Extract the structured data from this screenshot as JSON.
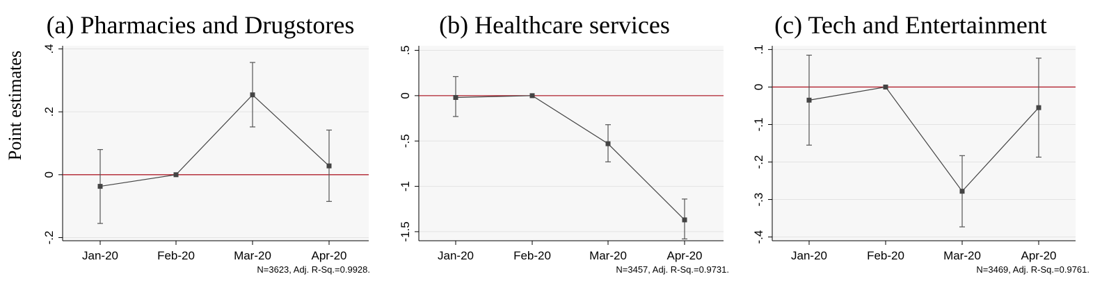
{
  "figure": {
    "ylabel": "Point estimates"
  },
  "chart_data": [
    {
      "type": "line",
      "title": "(a) Pharmacies and Drugstores",
      "categories": [
        "Jan-20",
        "Feb-20",
        "Mar-20",
        "Apr-20"
      ],
      "series": [
        {
          "values": [
            -0.037,
            0.0,
            0.254,
            0.028
          ],
          "ci_low": [
            -0.155,
            0.0,
            0.152,
            -0.085
          ],
          "ci_high": [
            0.08,
            0.0,
            0.357,
            0.142
          ]
        }
      ],
      "yticks": [
        -0.2,
        0,
        0.2,
        0.4
      ],
      "ytick_labels": [
        "-.2",
        "0",
        ".2",
        ".4"
      ],
      "ylim": [
        -0.21,
        0.41
      ],
      "reference_line": 0,
      "note": "N=3623, Adj. R-Sq.=0.9928.",
      "grid": true
    },
    {
      "type": "line",
      "title": "(b) Healthcare services",
      "categories": [
        "Jan-20",
        "Feb-20",
        "Mar-20",
        "Apr-20"
      ],
      "series": [
        {
          "values": [
            -0.02,
            0.0,
            -0.53,
            -1.37
          ],
          "ci_low": [
            -0.23,
            0.0,
            -0.73,
            -1.58
          ],
          "ci_high": [
            0.21,
            0.0,
            -0.32,
            -1.14
          ]
        }
      ],
      "yticks": [
        -1.5,
        -1,
        -0.5,
        0,
        0.5
      ],
      "ytick_labels": [
        "-1.5",
        "-1",
        "-.5",
        "0",
        ".5"
      ],
      "ylim": [
        -1.6,
        0.55
      ],
      "reference_line": 0,
      "note": "N=3457, Adj. R-Sq.=0.9731.",
      "grid": true
    },
    {
      "type": "line",
      "title": "(c) Tech and Entertainment",
      "categories": [
        "Jan-20",
        "Feb-20",
        "Mar-20",
        "Apr-20"
      ],
      "series": [
        {
          "values": [
            -0.035,
            0.0,
            -0.278,
            -0.055
          ],
          "ci_low": [
            -0.155,
            0.0,
            -0.373,
            -0.187
          ],
          "ci_high": [
            0.085,
            0.0,
            -0.183,
            0.077
          ]
        }
      ],
      "yticks": [
        -0.4,
        -0.3,
        -0.2,
        -0.1,
        0,
        0.1
      ],
      "ytick_labels": [
        "-.4",
        "-.3",
        "-.2",
        "-.1",
        "0",
        ".1"
      ],
      "ylim": [
        -0.41,
        0.11
      ],
      "reference_line": 0,
      "note": "N=3469, Adj. R-Sq.=0.9761.",
      "grid": true
    }
  ]
}
